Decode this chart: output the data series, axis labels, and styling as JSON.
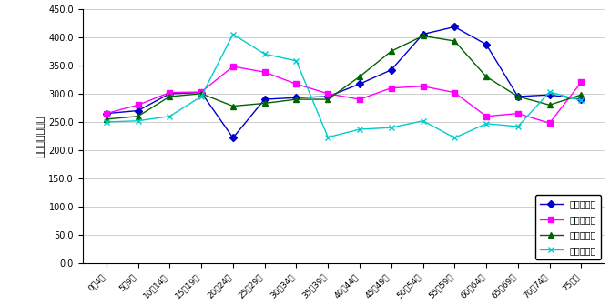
{
  "categories": [
    "0～4歳",
    "5～9歳",
    "10～14歳",
    "15～19歳",
    "20～24歳",
    "25～29歳",
    "30～34歳",
    "35～39歳",
    "40～44歳",
    "45～49歳",
    "50～54歳",
    "55～59歳",
    "60～64歳",
    "65～69歳",
    "70～74歳",
    "75歳～"
  ],
  "series": {
    "男・有配偶": [
      265,
      270,
      300,
      302,
      222,
      290,
      293,
      295,
      317,
      342,
      405,
      418,
      387,
      295,
      298,
      290
    ],
    "男・無配偶": [
      265,
      280,
      302,
      303,
      348,
      338,
      317,
      300,
      290,
      310,
      313,
      302,
      260,
      265,
      248,
      320
    ],
    "女・有配偶": [
      255,
      260,
      295,
      300,
      278,
      283,
      290,
      290,
      330,
      375,
      402,
      393,
      330,
      295,
      280,
      298
    ],
    "女・無配偶": [
      250,
      252,
      260,
      295,
      405,
      370,
      358,
      223,
      237,
      240,
      252,
      222,
      247,
      242,
      303,
      288
    ]
  },
  "colors": {
    "男・有配偶": "#0000CC",
    "男・無配偶": "#FF00FF",
    "女・有配偶": "#006400",
    "女・無配偶": "#00CCCC"
  },
  "markers": {
    "男・有配偶": "D",
    "男・無配偶": "s",
    "女・有配偶": "^",
    "女・無配偶": "x"
  },
  "ylabel_chars": [
    "等",
    "価",
    "可",
    "処",
    "分",
    "所",
    "得"
  ],
  "ylim": [
    0,
    450
  ],
  "yticks": [
    0.0,
    50.0,
    100.0,
    150.0,
    200.0,
    250.0,
    300.0,
    350.0,
    400.0,
    450.0
  ],
  "legend_loc": "lower right",
  "bg_color": "#FFFFFF",
  "grid_color": "#BBBBBB"
}
